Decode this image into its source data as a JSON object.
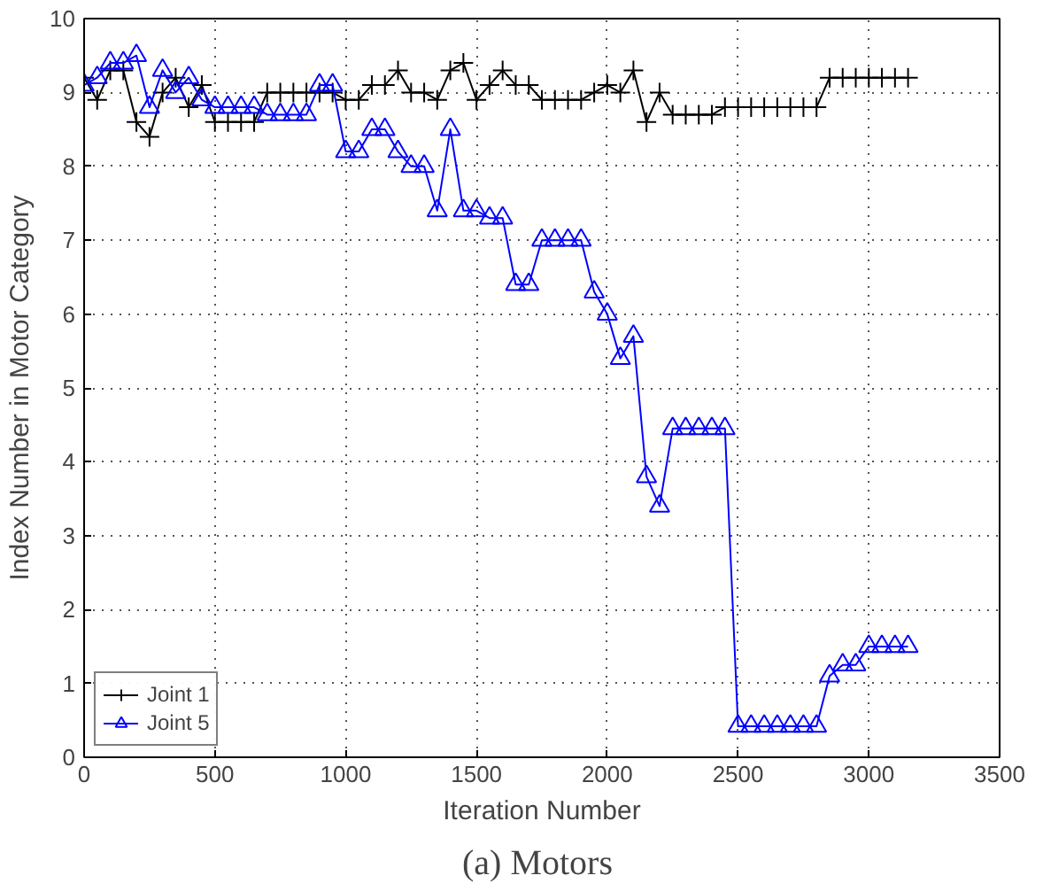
{
  "chart_data": {
    "type": "line",
    "xlabel": "Iteration Number",
    "ylabel": "Index Number in Motor Category",
    "annotations": [
      "(a)  Motors"
    ],
    "x": [
      0,
      50,
      100,
      150,
      200,
      250,
      300,
      350,
      400,
      450,
      500,
      550,
      600,
      650,
      700,
      750,
      800,
      850,
      900,
      950,
      1000,
      1050,
      1100,
      1150,
      1200,
      1250,
      1300,
      1350,
      1400,
      1450,
      1500,
      1550,
      1600,
      1650,
      1700,
      1750,
      1800,
      1850,
      1900,
      1950,
      2000,
      2050,
      2100,
      2150,
      2200,
      2250,
      2300,
      2350,
      2400,
      2450,
      2500,
      2550,
      2600,
      2650,
      2700,
      2750,
      2800,
      2850,
      2900,
      2950,
      3000,
      3050,
      3100,
      3150
    ],
    "series": [
      {
        "name": "Joint 1",
        "color": "#000000",
        "marker": "cross",
        "values": [
          9.2,
          8.9,
          9.3,
          9.3,
          8.6,
          8.4,
          9.0,
          9.2,
          8.8,
          9.1,
          8.6,
          8.6,
          8.6,
          8.6,
          9.0,
          9.0,
          9.0,
          9.0,
          9.0,
          9.0,
          8.9,
          8.9,
          9.1,
          9.1,
          9.3,
          9.0,
          9.0,
          8.9,
          9.3,
          9.4,
          8.9,
          9.1,
          9.3,
          9.1,
          9.1,
          8.9,
          8.9,
          8.9,
          8.9,
          9.0,
          9.1,
          9.0,
          9.3,
          8.6,
          9.0,
          8.7,
          8.7,
          8.7,
          8.7,
          8.8,
          8.8,
          8.8,
          8.8,
          8.8,
          8.8,
          8.8,
          8.8,
          9.2,
          9.2,
          9.2,
          9.2,
          9.2,
          9.2,
          9.2
        ]
      },
      {
        "name": "Joint 5",
        "color": "#0000ff",
        "marker": "triangle",
        "values": [
          9.1,
          9.2,
          9.4,
          9.4,
          9.5,
          8.8,
          9.3,
          9.0,
          9.2,
          8.9,
          8.8,
          8.8,
          8.8,
          8.8,
          8.7,
          8.7,
          8.7,
          8.7,
          9.1,
          9.1,
          8.2,
          8.2,
          8.5,
          8.5,
          8.2,
          8.0,
          8.0,
          7.4,
          8.5,
          7.4,
          7.4,
          7.3,
          7.3,
          6.4,
          6.4,
          7.0,
          7.0,
          7.0,
          7.0,
          6.3,
          6.0,
          5.4,
          5.7,
          3.8,
          3.4,
          4.45,
          4.45,
          4.45,
          4.45,
          4.45,
          0.42,
          0.42,
          0.42,
          0.42,
          0.42,
          0.42,
          0.42,
          1.1,
          1.25,
          1.25,
          1.5,
          1.5,
          1.5,
          1.5
        ]
      }
    ],
    "xlim": [
      0,
      3500
    ],
    "xticks": [
      0,
      500,
      1000,
      1500,
      2000,
      2500,
      3000,
      3500
    ],
    "ylim": [
      0,
      10
    ],
    "yticks": [
      0,
      1,
      2,
      3,
      4,
      5,
      6,
      7,
      8,
      9,
      10
    ],
    "grid": true,
    "legend": "bottom left",
    "line_style": "solid"
  }
}
